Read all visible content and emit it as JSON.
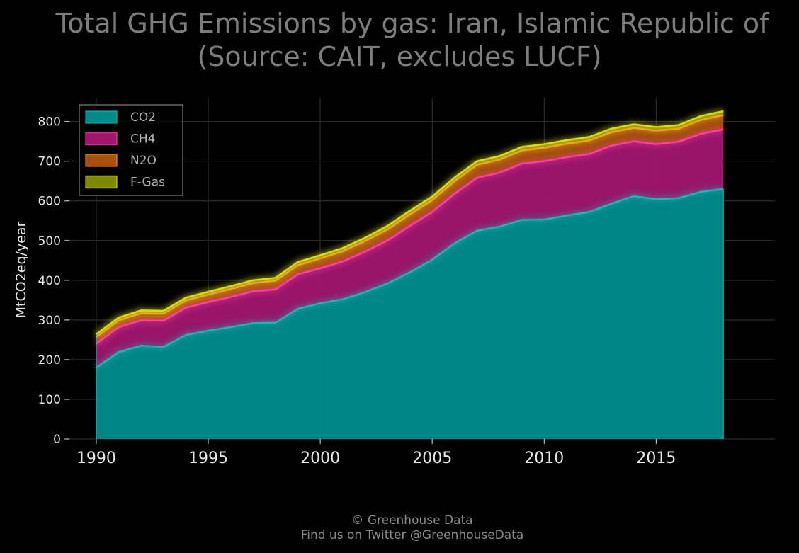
{
  "header": {
    "title_line1": "Total GHG Emissions by gas: Iran, Islamic Republic of",
    "title_line2": "(Source: CAIT, excludes LUCF)"
  },
  "footer": {
    "line1": "© Greenhouse Data",
    "line2": "Find us on Twitter @GreenhouseData"
  },
  "chart_data": {
    "type": "area",
    "stacked": true,
    "title": "Total GHG Emissions by gas: Iran, Islamic Republic of",
    "subtitle": "(Source: CAIT, excludes LUCF)",
    "xlabel": "",
    "ylabel": "MtCO2eq/year",
    "xlim": [
      1988.8,
      2020.3
    ],
    "ylim": [
      0,
      860
    ],
    "x_ticks": [
      1990,
      1995,
      2000,
      2005,
      2010,
      2015
    ],
    "y_ticks": [
      0,
      100,
      200,
      300,
      400,
      500,
      600,
      700,
      800
    ],
    "grid": true,
    "legend_position": "top-left",
    "x": [
      1990,
      1991,
      1992,
      1993,
      1994,
      1995,
      1996,
      1997,
      1998,
      1999,
      2000,
      2001,
      2002,
      2003,
      2004,
      2005,
      2006,
      2007,
      2008,
      2009,
      2010,
      2011,
      2012,
      2013,
      2014,
      2015,
      2016,
      2017,
      2018
    ],
    "series": [
      {
        "name": "CO2",
        "color": "#008b8b",
        "line_color": "#1fb5b5",
        "values": [
          180,
          219,
          235,
          232,
          262,
          273,
          282,
          292,
          293,
          328,
          342,
          352,
          370,
          392,
          420,
          452,
          493,
          525,
          535,
          552,
          553,
          563,
          572,
          593,
          612,
          604,
          607,
          623,
          630
        ]
      },
      {
        "name": "CH4",
        "color": "#a0166f",
        "line_color": "#ff3ea8",
        "values": [
          60,
          63,
          64,
          66,
          69,
          72,
          76,
          80,
          84,
          87,
          88,
          95,
          102,
          108,
          117,
          120,
          125,
          133,
          136,
          142,
          147,
          147,
          146,
          146,
          138,
          139,
          142,
          146,
          150
        ]
      },
      {
        "name": "N2O",
        "color": "#a8500e",
        "line_color": "#f59a2c",
        "values": [
          17,
          17,
          18,
          18,
          18,
          19,
          20,
          21,
          22,
          23,
          25,
          26,
          27,
          28,
          29,
          30,
          32,
          33,
          33,
          33,
          34,
          34,
          34,
          34,
          34,
          34,
          33,
          35,
          36
        ]
      },
      {
        "name": "F-Gas",
        "color": "#7d8a00",
        "line_color": "#d8e000",
        "values": [
          7,
          7,
          7,
          7,
          7,
          7,
          7,
          7,
          7,
          8,
          8,
          8,
          8,
          9,
          9,
          9,
          9,
          9,
          9,
          9,
          9,
          9,
          9,
          9,
          9,
          9,
          9,
          10,
          10
        ]
      }
    ]
  }
}
